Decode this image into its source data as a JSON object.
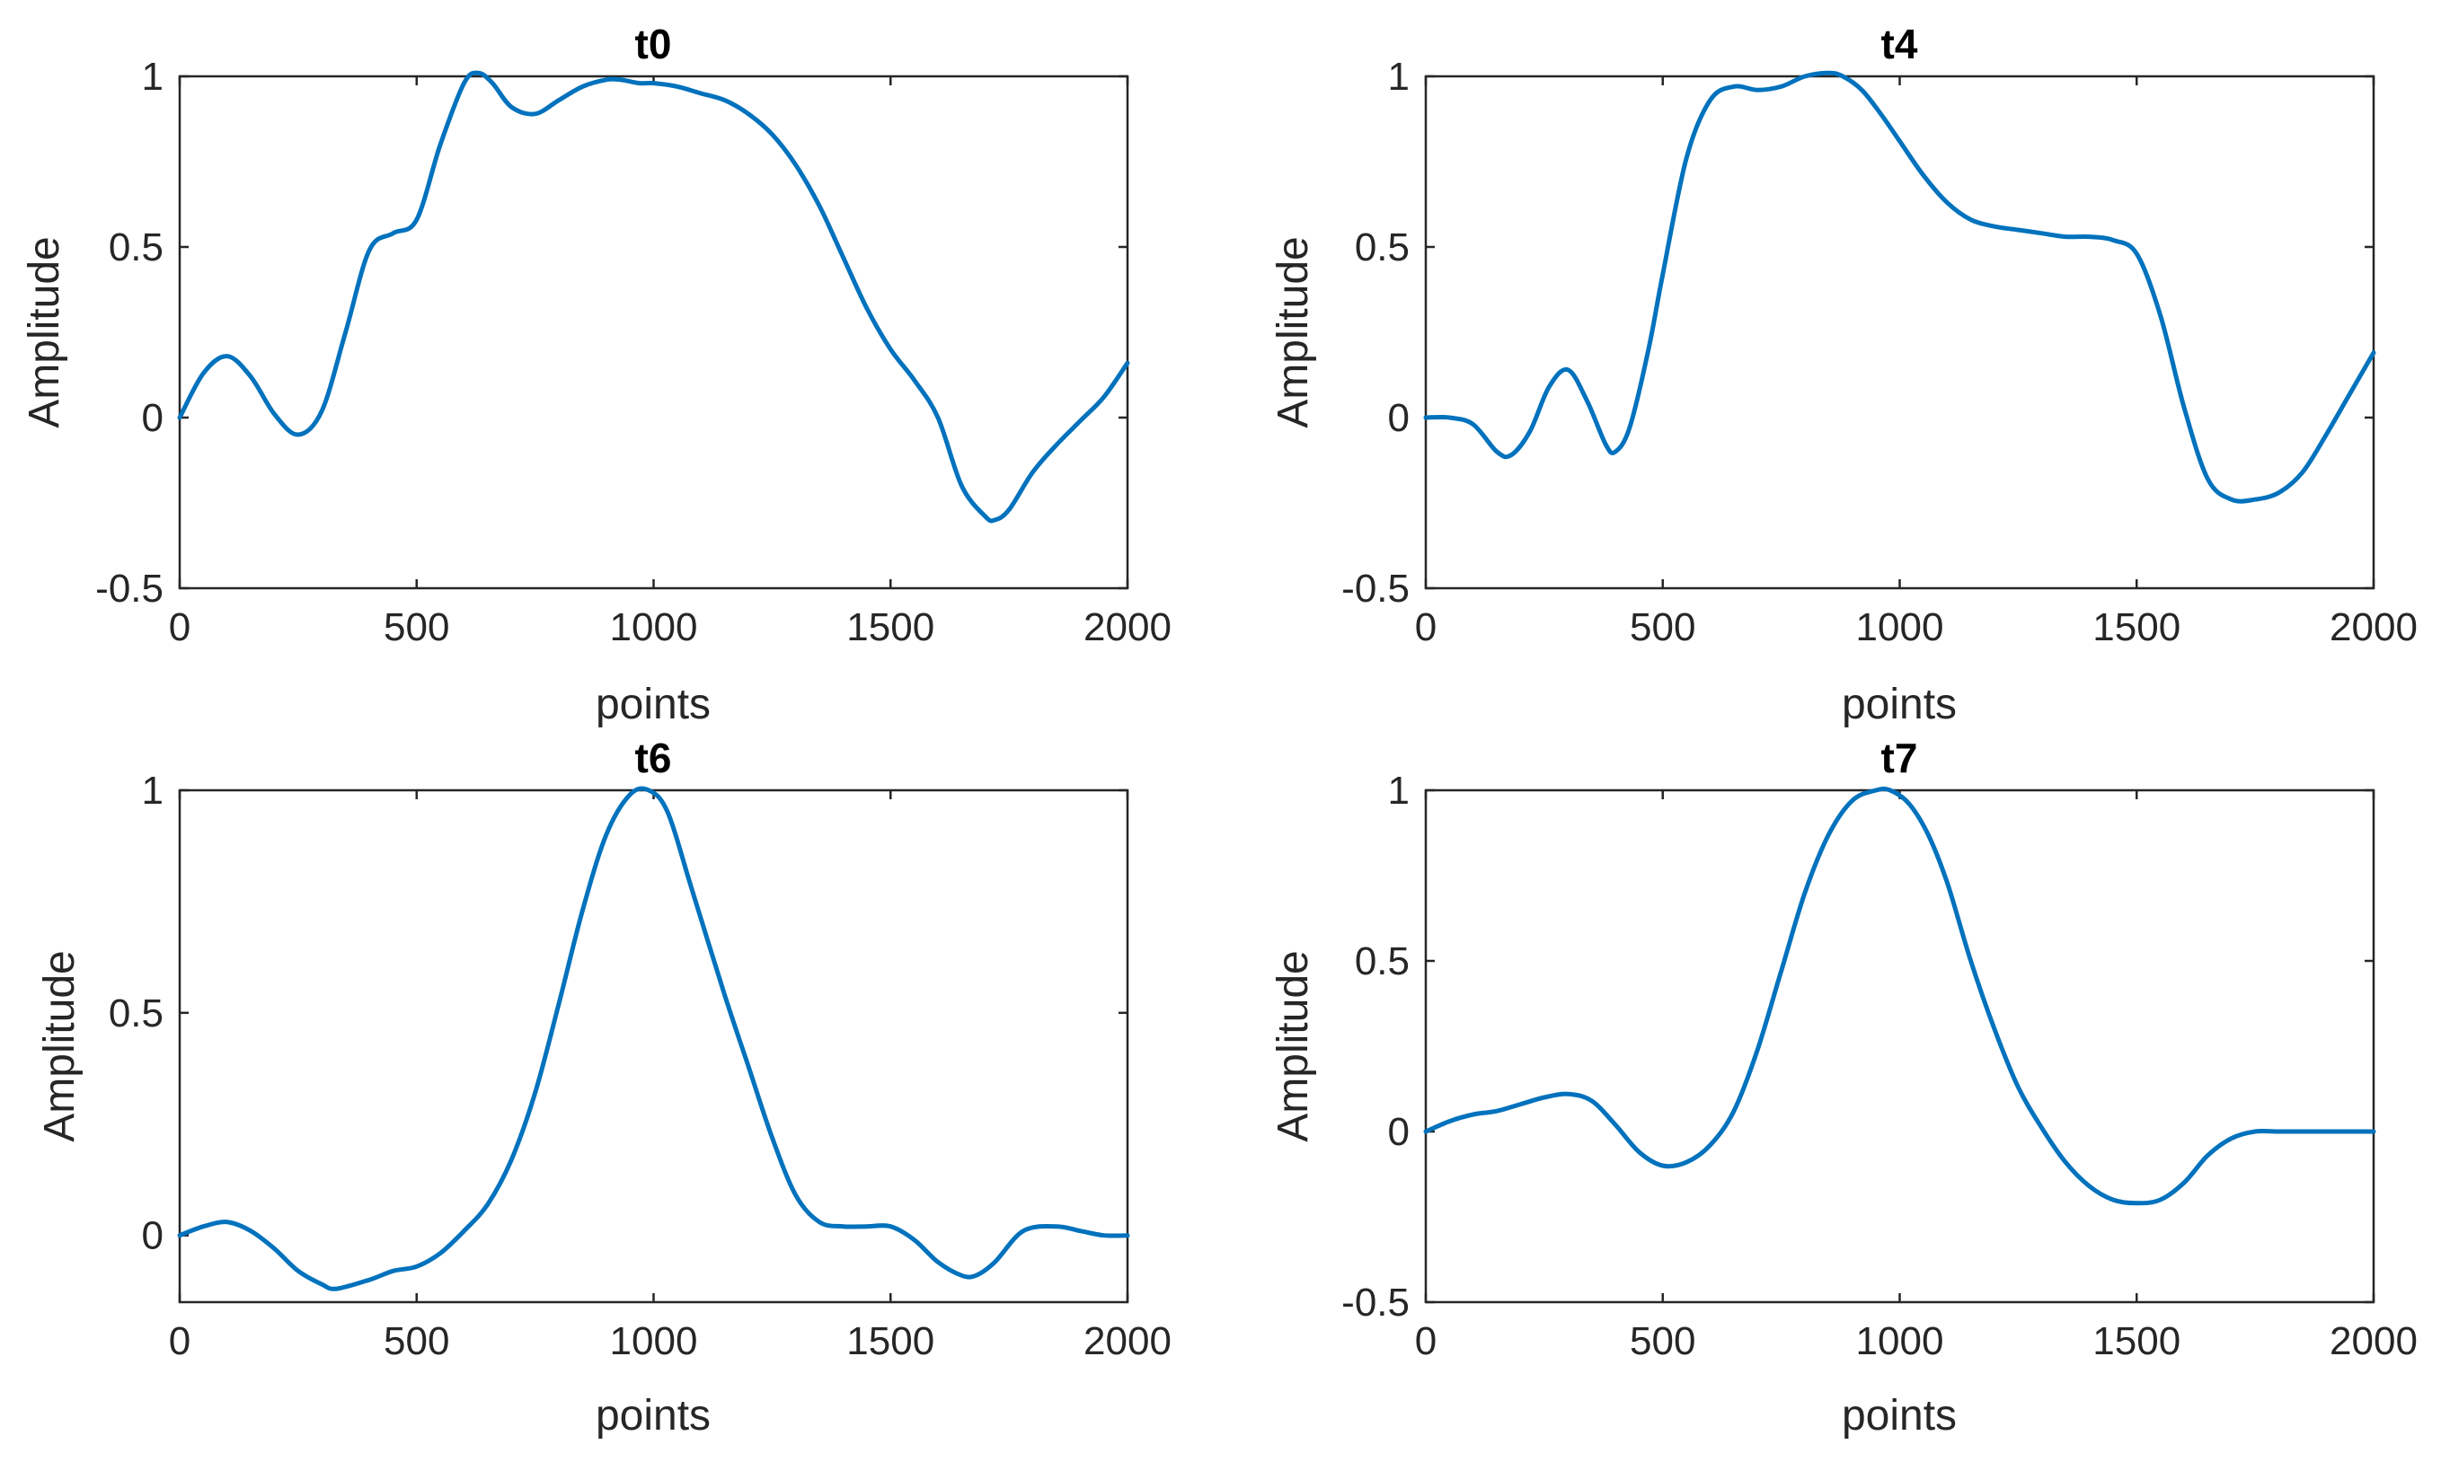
{
  "figure": {
    "background": "#ffffff",
    "line_color": "#0072BD"
  },
  "chart_data": [
    {
      "type": "line",
      "title": "t0",
      "xlabel": "points",
      "ylabel": "Amplitude",
      "xlim": [
        0,
        2000
      ],
      "ylim": [
        -0.5,
        1
      ],
      "xticks": [
        0,
        500,
        1000,
        1500,
        2000
      ],
      "xtick_labels": [
        "0",
        "500",
        "1000",
        "1500",
        "2000"
      ],
      "yticks": [
        -0.5,
        0,
        0.5,
        1
      ],
      "ytick_labels": [
        "-0.5",
        "0",
        "0.5",
        "1"
      ],
      "grid": false,
      "series": [
        {
          "x": [
            0,
            50,
            100,
            150,
            200,
            250,
            300,
            350,
            400,
            450,
            500,
            550,
            600,
            630,
            660,
            700,
            750,
            800,
            850,
            900,
            930,
            970,
            1000,
            1050,
            1100,
            1150,
            1200,
            1250,
            1300,
            1350,
            1400,
            1450,
            1500,
            1550,
            1600,
            1650,
            1700,
            1720,
            1750,
            1800,
            1850,
            1900,
            1950,
            2000
          ],
          "y": [
            0.0,
            0.13,
            0.18,
            0.12,
            0.01,
            -0.05,
            0.02,
            0.25,
            0.49,
            0.54,
            0.58,
            0.8,
            0.98,
            1.01,
            0.98,
            0.91,
            0.89,
            0.93,
            0.97,
            0.99,
            0.99,
            0.98,
            0.98,
            0.97,
            0.95,
            0.93,
            0.89,
            0.83,
            0.74,
            0.62,
            0.47,
            0.32,
            0.2,
            0.11,
            0.0,
            -0.2,
            -0.29,
            -0.3,
            -0.27,
            -0.16,
            -0.08,
            -0.01,
            0.06,
            0.16
          ]
        }
      ]
    },
    {
      "type": "line",
      "title": "t4",
      "xlabel": "points",
      "ylabel": "Amplitude",
      "xlim": [
        0,
        2000
      ],
      "ylim": [
        -0.5,
        1
      ],
      "xticks": [
        0,
        500,
        1000,
        1500,
        2000
      ],
      "xtick_labels": [
        "0",
        "500",
        "1000",
        "1500",
        "2000"
      ],
      "yticks": [
        -0.5,
        0,
        0.5,
        1
      ],
      "ytick_labels": [
        "-0.5",
        "0",
        "0.5",
        "1"
      ],
      "grid": false,
      "series": [
        {
          "x": [
            0,
            50,
            100,
            150,
            180,
            220,
            260,
            300,
            340,
            380,
            400,
            430,
            470,
            500,
            550,
            600,
            650,
            700,
            750,
            800,
            850,
            880,
            920,
            960,
            1000,
            1050,
            1100,
            1150,
            1200,
            1250,
            1300,
            1350,
            1400,
            1450,
            1500,
            1550,
            1600,
            1650,
            1700,
            1750,
            1800,
            1850,
            1900,
            1950,
            2000
          ],
          "y": [
            0.0,
            0.0,
            -0.02,
            -0.1,
            -0.11,
            -0.04,
            0.09,
            0.14,
            0.05,
            -0.08,
            -0.1,
            -0.03,
            0.2,
            0.42,
            0.76,
            0.93,
            0.97,
            0.96,
            0.97,
            1.0,
            1.01,
            1.0,
            0.96,
            0.89,
            0.81,
            0.71,
            0.63,
            0.58,
            0.56,
            0.55,
            0.54,
            0.53,
            0.53,
            0.52,
            0.48,
            0.3,
            0.03,
            -0.18,
            -0.24,
            -0.24,
            -0.22,
            -0.16,
            -0.05,
            0.07,
            0.19
          ]
        }
      ]
    },
    {
      "type": "line",
      "title": "t6",
      "xlabel": "points",
      "ylabel": "Amplitude",
      "xlim": [
        0,
        2000
      ],
      "ylim": [
        -0.15,
        1
      ],
      "xticks": [
        0,
        500,
        1000,
        1500,
        2000
      ],
      "xtick_labels": [
        "0",
        "500",
        "1000",
        "1500",
        "2000"
      ],
      "yticks": [
        0,
        0.5,
        1
      ],
      "ytick_labels": [
        "0",
        "0.5",
        "1"
      ],
      "grid": false,
      "series": [
        {
          "x": [
            0,
            50,
            100,
            150,
            200,
            250,
            300,
            330,
            400,
            450,
            500,
            550,
            600,
            650,
            700,
            750,
            800,
            850,
            900,
            950,
            990,
            1030,
            1080,
            1150,
            1200,
            1250,
            1300,
            1350,
            1400,
            1450,
            1500,
            1550,
            1600,
            1650,
            1680,
            1720,
            1780,
            1850,
            1900,
            1950,
            2000
          ],
          "y": [
            0.0,
            0.02,
            0.03,
            0.01,
            -0.03,
            -0.08,
            -0.11,
            -0.12,
            -0.1,
            -0.08,
            -0.07,
            -0.04,
            0.01,
            0.07,
            0.17,
            0.32,
            0.52,
            0.73,
            0.9,
            0.99,
            1.0,
            0.95,
            0.78,
            0.54,
            0.38,
            0.22,
            0.09,
            0.03,
            0.02,
            0.02,
            0.02,
            -0.01,
            -0.06,
            -0.09,
            -0.09,
            -0.06,
            0.01,
            0.02,
            0.01,
            0.0,
            0.0
          ]
        }
      ]
    },
    {
      "type": "line",
      "title": "t7",
      "xlabel": "points",
      "ylabel": "Amplitude",
      "xlim": [
        0,
        2000
      ],
      "ylim": [
        -0.5,
        1
      ],
      "xticks": [
        0,
        500,
        1000,
        1500,
        2000
      ],
      "xtick_labels": [
        "0",
        "500",
        "1000",
        "1500",
        "2000"
      ],
      "yticks": [
        -0.5,
        0,
        0.5,
        1
      ],
      "ytick_labels": [
        "-0.5",
        "0",
        "0.5",
        "1"
      ],
      "grid": false,
      "series": [
        {
          "x": [
            0,
            50,
            100,
            150,
            200,
            250,
            300,
            350,
            400,
            450,
            500,
            550,
            600,
            650,
            700,
            750,
            800,
            850,
            900,
            950,
            980,
            1020,
            1060,
            1100,
            1150,
            1200,
            1250,
            1300,
            1350,
            1400,
            1450,
            1500,
            1550,
            1600,
            1650,
            1700,
            1750,
            1800,
            1850,
            1900,
            1950,
            2000
          ],
          "y": [
            0.0,
            0.03,
            0.05,
            0.06,
            0.08,
            0.1,
            0.11,
            0.09,
            0.02,
            -0.06,
            -0.1,
            -0.09,
            -0.04,
            0.06,
            0.24,
            0.47,
            0.7,
            0.87,
            0.97,
            1.0,
            1.0,
            0.96,
            0.87,
            0.73,
            0.5,
            0.3,
            0.13,
            0.01,
            -0.09,
            -0.16,
            -0.2,
            -0.21,
            -0.2,
            -0.15,
            -0.07,
            -0.02,
            0.0,
            0.0,
            0.0,
            0.0,
            0.0,
            0.0
          ]
        }
      ]
    }
  ]
}
